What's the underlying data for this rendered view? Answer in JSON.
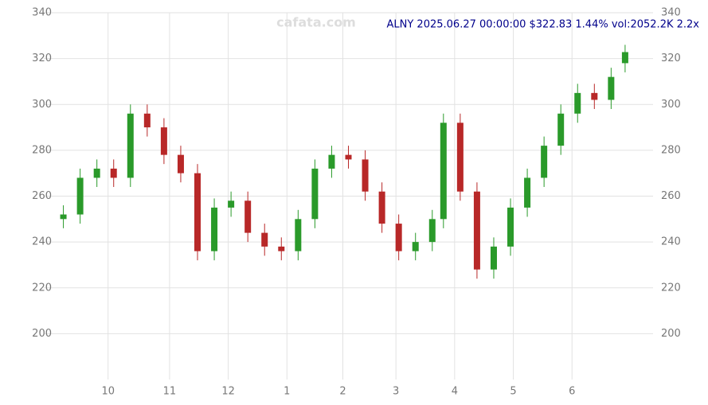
{
  "chart_data": {
    "type": "candlestick",
    "title": "ALNY 2025.06.27 00:00:00 $322.83 1.44% vol:2052.2K 2.2x",
    "watermark": "cafata.com",
    "x": [
      0,
      6,
      12,
      18,
      24,
      30,
      36,
      42,
      48,
      54,
      60,
      66,
      72,
      78,
      84,
      90,
      96,
      102,
      108,
      114,
      120,
      126,
      132,
      136,
      142,
      148,
      154,
      160,
      166,
      172,
      178,
      184,
      190,
      196,
      201
    ],
    "open": [
      250,
      252,
      268,
      272,
      268,
      296,
      290,
      278,
      270,
      236,
      255,
      258,
      244,
      238,
      236,
      250,
      272,
      278,
      276,
      262,
      248,
      236,
      240,
      250,
      292,
      262,
      228,
      238,
      255,
      268,
      282,
      296,
      305,
      302,
      318
    ],
    "high": [
      256,
      272,
      276,
      276,
      300,
      300,
      294,
      282,
      274,
      259,
      262,
      262,
      248,
      242,
      254,
      276,
      282,
      282,
      280,
      266,
      252,
      244,
      254,
      296,
      296,
      266,
      242,
      259,
      272,
      286,
      300,
      309,
      309,
      316,
      326
    ],
    "low": [
      246,
      248,
      264,
      264,
      264,
      286,
      274,
      266,
      232,
      232,
      251,
      240,
      234,
      232,
      232,
      246,
      268,
      272,
      258,
      244,
      232,
      232,
      236,
      246,
      258,
      224,
      224,
      234,
      251,
      264,
      278,
      292,
      298,
      298,
      314
    ],
    "close": [
      252,
      268,
      272,
      268,
      296,
      290,
      278,
      270,
      236,
      255,
      258,
      244,
      238,
      236,
      250,
      272,
      278,
      276,
      262,
      248,
      236,
      240,
      250,
      292,
      262,
      228,
      238,
      255,
      268,
      282,
      296,
      305,
      302,
      312,
      322.83
    ],
    "up_color": "#2a9a2a",
    "down_color": "#b82828",
    "xlim": [
      -7,
      211
    ],
    "xticks": [
      {
        "value": 16,
        "label": "10"
      },
      {
        "value": 38,
        "label": "11"
      },
      {
        "value": 59,
        "label": "12"
      },
      {
        "value": 80,
        "label": "1"
      },
      {
        "value": 100,
        "label": "2"
      },
      {
        "value": 119,
        "label": "3"
      },
      {
        "value": 140,
        "label": "4"
      },
      {
        "value": 161,
        "label": "5"
      },
      {
        "value": 182,
        "label": "6"
      }
    ],
    "ylim": [
      180,
      340
    ],
    "yticks": [
      200,
      220,
      240,
      260,
      280,
      300,
      320,
      340
    ],
    "grid": true
  }
}
